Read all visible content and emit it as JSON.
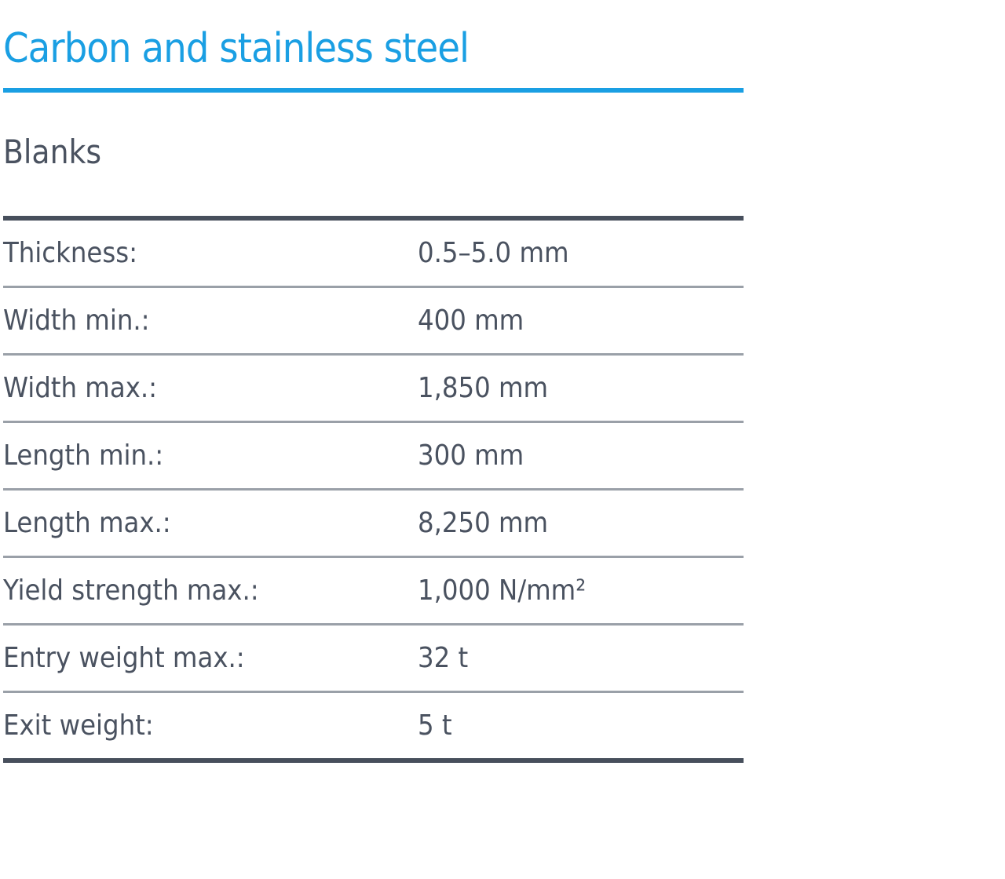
{
  "header": {
    "title": "Carbon and stainless steel",
    "subtitle": "Blanks"
  },
  "table": {
    "rows": [
      [
        "Thickness:",
        "0.5–5.0 mm"
      ],
      [
        "Width min.:",
        "400 mm"
      ],
      [
        "Width max.:",
        "1,850 mm"
      ],
      [
        "Length min.:",
        "300 mm"
      ],
      [
        "Length max.:",
        "8,250 mm"
      ],
      [
        "Yield strength max.:",
        "1,000 N/mm²"
      ],
      [
        "Entry weight max.:",
        "32 t"
      ],
      [
        "Exit weight:",
        "5 t"
      ]
    ]
  }
}
